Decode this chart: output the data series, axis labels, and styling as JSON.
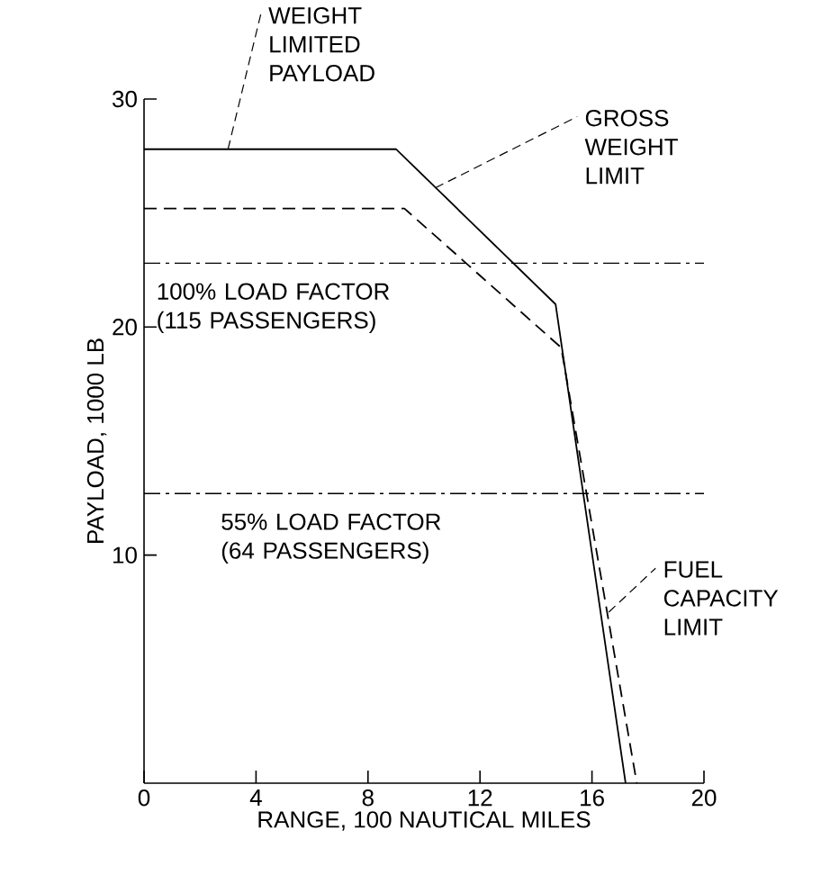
{
  "chart_data": {
    "type": "line",
    "xlabel": "RANGE, 100 NAUTICAL MILES",
    "ylabel": "PAYLOAD, 1000 LB",
    "xlim": [
      0,
      20
    ],
    "ylim": [
      0,
      30
    ],
    "xticks": [
      0,
      4,
      8,
      12,
      16,
      20
    ],
    "yticks": [
      10,
      20,
      30
    ],
    "grid": false,
    "series": [
      {
        "color": "#000000",
        "line_style": "solid",
        "x": [
          0,
          9,
          14.7,
          17.2
        ],
        "values": [
          27.8,
          27.8,
          21,
          0
        ]
      },
      {
        "color": "#000000",
        "line_style": "dashed",
        "x": [
          0,
          9.3,
          14.9,
          17.6
        ],
        "values": [
          25.2,
          25.2,
          19.1,
          0
        ]
      }
    ],
    "ref_lines": [
      {
        "axis": "y",
        "value": 22.8,
        "label": "100% LOAD FACTOR (115 PASSENGERS)",
        "color": "#000000",
        "line_style": "dashdot"
      },
      {
        "axis": "y",
        "value": 12.7,
        "label": "55% LOAD FACTOR (64 PASSENGERS)",
        "color": "#000000",
        "line_style": "dashdot"
      }
    ],
    "annotations": [
      {
        "text": "WEIGHT LIMITED PAYLOAD",
        "x": 3,
        "y": 27.8
      },
      {
        "text": "GROSS WEIGHT LIMIT",
        "x": 10.4,
        "y": 26.1
      },
      {
        "text": "FUEL CAPACITY LIMIT",
        "x": 16.6,
        "y": 7.5
      }
    ]
  }
}
